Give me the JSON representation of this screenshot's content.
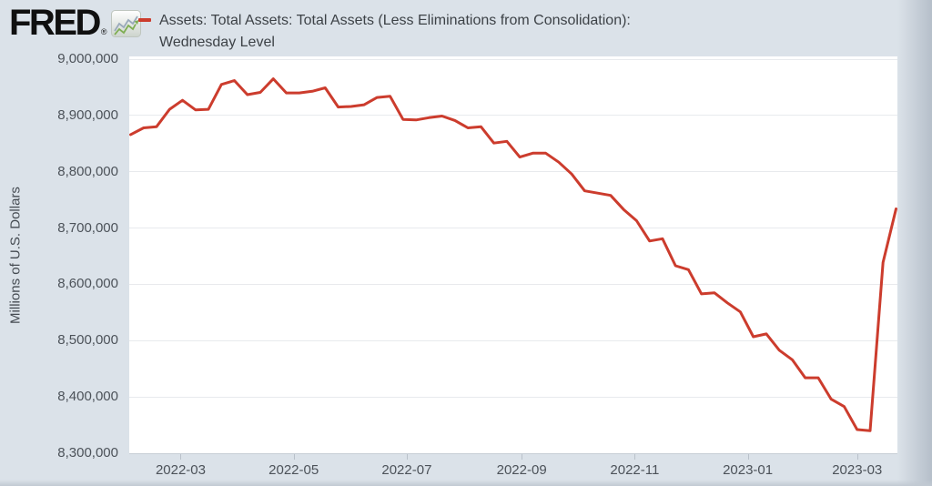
{
  "header": {
    "logo_text": "FRED",
    "registered_mark": "®",
    "legend": {
      "label_line1": "Assets: Total Assets: Total Assets (Less Eliminations from Consolidation):",
      "label_line2": "Wednesday Level"
    }
  },
  "colors": {
    "background": "#dbe2e9",
    "plot_background": "#ffffff",
    "gridline": "#e8eaed",
    "axis_text": "#4c5259",
    "legend_text": "#3d4247",
    "line": "#cc3c2d"
  },
  "chart_data": {
    "type": "line",
    "title": "Assets: Total Assets: Total Assets (Less Eliminations from Consolidation): Wednesday Level",
    "xlabel": "",
    "ylabel": "Millions of U.S. Dollars",
    "ylim": [
      8300000,
      9000000
    ],
    "grid": true,
    "legend_position": "top-left",
    "line_color": "#cc3c2d",
    "yticks": [
      {
        "value": 9000000,
        "label": "9,000,000"
      },
      {
        "value": 8900000,
        "label": "8,900,000"
      },
      {
        "value": 8800000,
        "label": "8,800,000"
      },
      {
        "value": 8700000,
        "label": "8,700,000"
      },
      {
        "value": 8600000,
        "label": "8,600,000"
      },
      {
        "value": 8500000,
        "label": "8,500,000"
      },
      {
        "value": 8400000,
        "label": "8,400,000"
      },
      {
        "value": 8300000,
        "label": "8,300,000"
      }
    ],
    "xticks": [
      "2022-03",
      "2022-05",
      "2022-07",
      "2022-09",
      "2022-11",
      "2023-01",
      "2023-03"
    ],
    "x": [
      "2022-02-02",
      "2022-02-09",
      "2022-02-16",
      "2022-02-23",
      "2022-03-02",
      "2022-03-09",
      "2022-03-16",
      "2022-03-23",
      "2022-03-30",
      "2022-04-06",
      "2022-04-13",
      "2022-04-20",
      "2022-04-27",
      "2022-05-04",
      "2022-05-11",
      "2022-05-18",
      "2022-05-25",
      "2022-06-01",
      "2022-06-08",
      "2022-06-15",
      "2022-06-22",
      "2022-06-29",
      "2022-07-06",
      "2022-07-13",
      "2022-07-20",
      "2022-07-27",
      "2022-08-03",
      "2022-08-10",
      "2022-08-17",
      "2022-08-24",
      "2022-08-31",
      "2022-09-07",
      "2022-09-14",
      "2022-09-21",
      "2022-09-28",
      "2022-10-05",
      "2022-10-12",
      "2022-10-19",
      "2022-10-26",
      "2022-11-02",
      "2022-11-09",
      "2022-11-16",
      "2022-11-23",
      "2022-11-30",
      "2022-12-07",
      "2022-12-14",
      "2022-12-21",
      "2022-12-28",
      "2023-01-04",
      "2023-01-11",
      "2023-01-18",
      "2023-01-25",
      "2023-02-01",
      "2023-02-08",
      "2023-02-15",
      "2023-02-22",
      "2023-03-01",
      "2023-03-08",
      "2023-03-15",
      "2023-03-22"
    ],
    "y": [
      8866000,
      8878000,
      8880000,
      8911000,
      8927000,
      8910000,
      8911000,
      8955000,
      8962000,
      8937000,
      8941000,
      8965000,
      8940000,
      8940000,
      8943000,
      8949000,
      8915000,
      8916000,
      8919000,
      8932000,
      8934000,
      8893000,
      8892000,
      8896000,
      8899000,
      8891000,
      8878000,
      8880000,
      8851000,
      8854000,
      8826000,
      8833000,
      8833000,
      8817000,
      8796000,
      8766000,
      8762000,
      8758000,
      8733000,
      8713000,
      8677000,
      8681000,
      8633000,
      8626000,
      8583000,
      8585000,
      8567000,
      8551000,
      8507000,
      8512000,
      8483000,
      8466000,
      8434000,
      8434000,
      8396000,
      8383000,
      8342000,
      8340000,
      8639000,
      8734000
    ]
  }
}
